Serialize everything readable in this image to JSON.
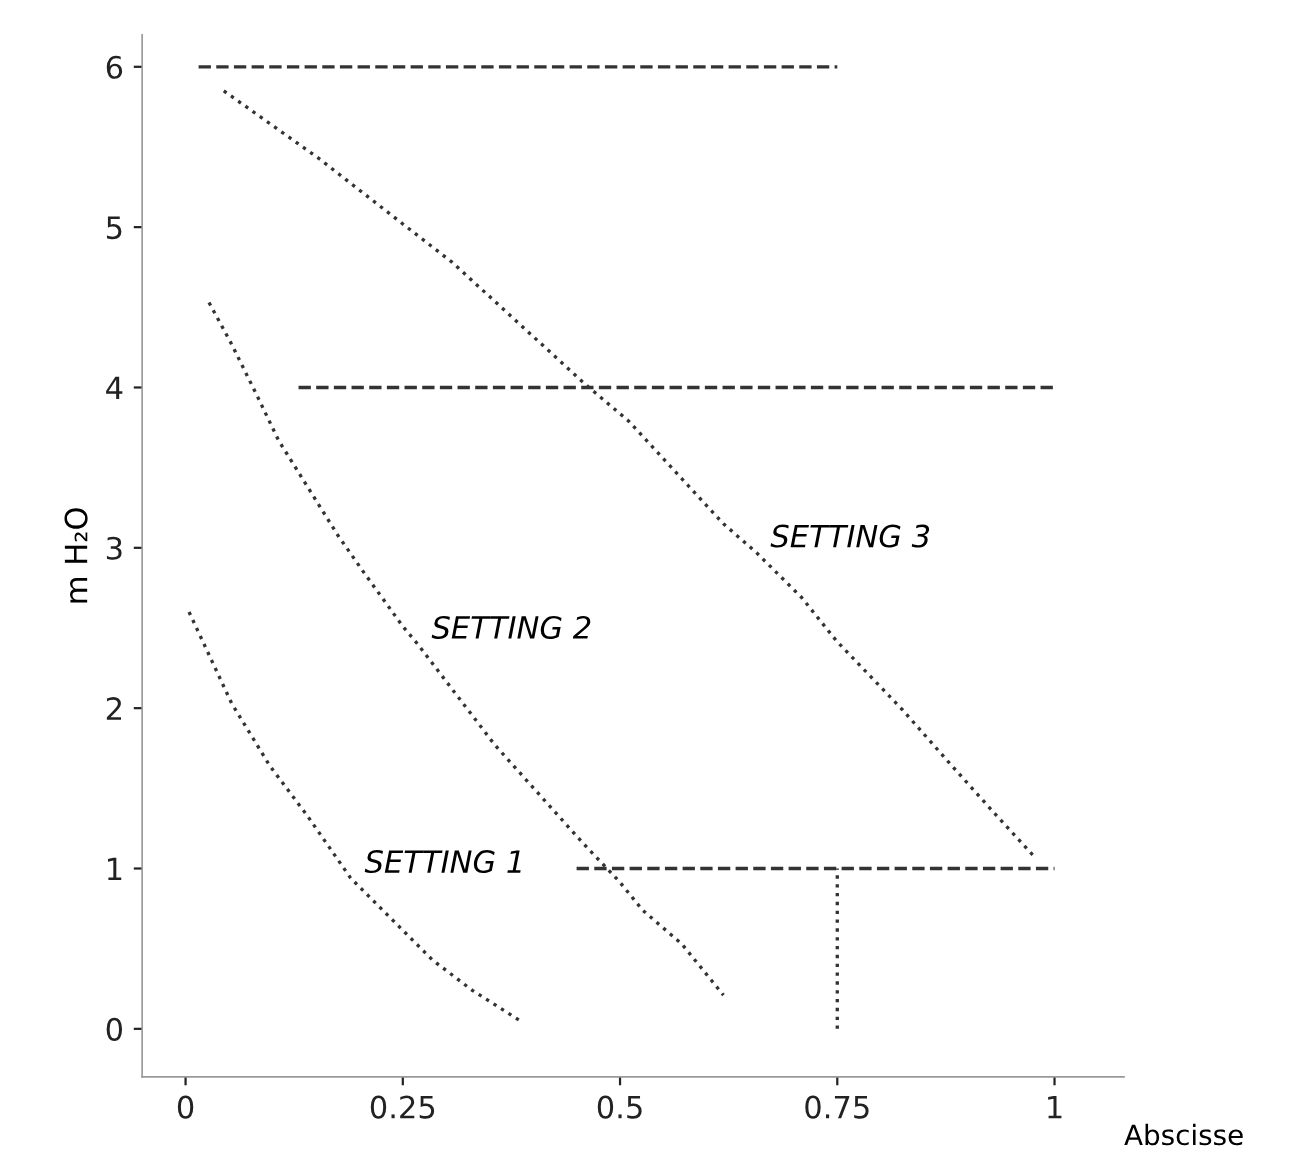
{
  "chart_data": {
    "type": "line",
    "ylabel": "m H₂O",
    "xlabel": "Abscisse",
    "xlim": [
      -0.05,
      1.08
    ],
    "ylim": [
      -0.3,
      6.2
    ],
    "xticks": [
      {
        "value": 0,
        "label": "0"
      },
      0.25,
      0.5,
      0.75,
      {
        "value": 1,
        "label": "1"
      }
    ],
    "yticks": [
      0,
      1,
      2,
      3,
      4,
      5,
      6
    ],
    "line_style": "dotted",
    "marker": "none",
    "series": [
      {
        "name": "SETTING 1",
        "color": "#333333",
        "x": [
          0.004,
          0.053,
          0.097,
          0.14,
          0.19,
          0.284,
          0.33,
          0.385
        ],
        "values": [
          2.6,
          2.03,
          1.64,
          1.33,
          0.94,
          0.43,
          0.24,
          0.05
        ]
      },
      {
        "name": "SETTING 2",
        "color": "#333333",
        "x": [
          0.027,
          0.053,
          0.084,
          0.107,
          0.175,
          0.206,
          0.25,
          0.267,
          0.356,
          0.457,
          0.499,
          0.526,
          0.571,
          0.619
        ],
        "values": [
          4.53,
          4.27,
          3.93,
          3.67,
          3.08,
          2.84,
          2.51,
          2.4,
          1.77,
          1.16,
          0.92,
          0.74,
          0.53,
          0.21
        ]
      },
      {
        "name": "SETTING 3",
        "color": "#333333",
        "x": [
          0.044,
          0.153,
          0.25,
          0.307,
          0.46,
          0.51,
          0.619,
          0.657,
          0.709,
          0.749,
          0.825,
          0.882,
          0.93,
          0.979
        ],
        "values": [
          5.85,
          5.43,
          5.02,
          4.78,
          4.02,
          3.79,
          3.15,
          2.97,
          2.69,
          2.42,
          1.99,
          1.64,
          1.35,
          1.06
        ]
      },
      {
        "color": "#333333",
        "line_style": "dashed",
        "x": [
          0.015,
          0.75
        ],
        "values": [
          6,
          6
        ]
      },
      {
        "color": "#333333",
        "line_style": "dashed",
        "x": [
          0.13,
          1.0
        ],
        "values": [
          4,
          4
        ]
      },
      {
        "color": "#333333",
        "line_style": "dashed",
        "x": [
          0.45,
          1.0
        ],
        "values": [
          1,
          1
        ]
      },
      {
        "color": "#333333",
        "x": [
          0.75,
          0.75
        ],
        "values": [
          0,
          1
        ]
      }
    ]
  }
}
